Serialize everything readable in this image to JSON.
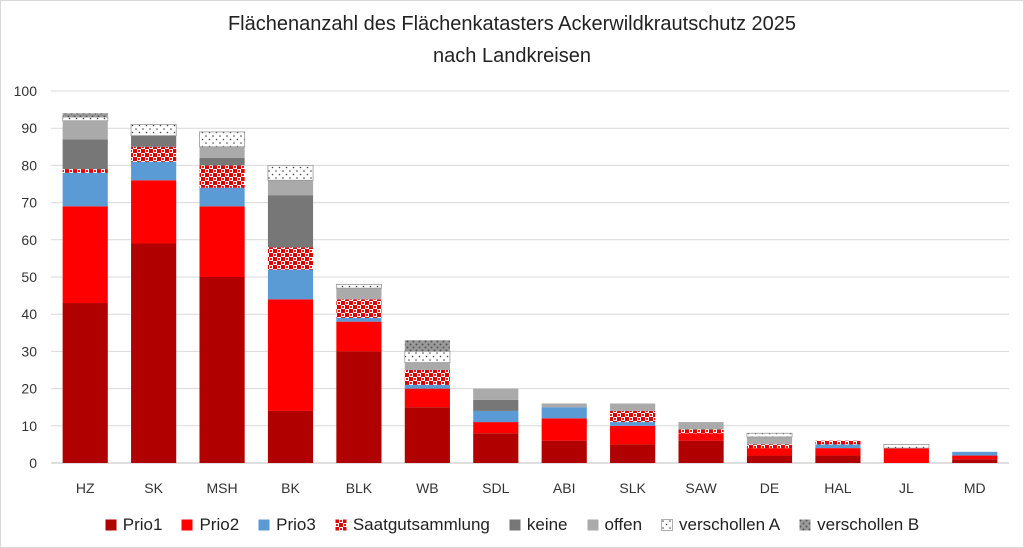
{
  "chart_data": {
    "type": "bar",
    "stacked": true,
    "title": "Flächenanzahl des Flächenkatasters Ackerwildkrautschutz 2025",
    "subtitle": "nach Landkreisen",
    "xlabel": "",
    "ylabel": "",
    "ylim": [
      0,
      100
    ],
    "yticks": [
      "0",
      "10",
      "20",
      "30",
      "40",
      "50",
      "60",
      "70",
      "80",
      "90",
      "100"
    ],
    "grid": true,
    "legend_position": "bottom",
    "categories": [
      "HZ",
      "SK",
      "MSH",
      "BK",
      "BLK",
      "WB",
      "SDL",
      "ABI",
      "SLK",
      "SAW",
      "DE",
      "HAL",
      "JL",
      "MD"
    ],
    "series": [
      {
        "name": "Prio1",
        "color": "#b00000",
        "pattern": "solid",
        "values": [
          43,
          59,
          50,
          14,
          30,
          15,
          8,
          6,
          5,
          6,
          2,
          2,
          0,
          1
        ]
      },
      {
        "name": "Prio2",
        "color": "#ff0000",
        "pattern": "solid",
        "values": [
          26,
          17,
          19,
          30,
          8,
          5,
          3,
          6,
          5,
          2,
          2,
          2,
          4,
          1
        ]
      },
      {
        "name": "Prio3",
        "color": "#5b9bd5",
        "pattern": "solid",
        "values": [
          9,
          5,
          5,
          8,
          1,
          1,
          3,
          3,
          1,
          0,
          0,
          1,
          0,
          1
        ]
      },
      {
        "name": "Saatgutsammlung",
        "color": "#ff0000",
        "pattern": "checker",
        "values": [
          1,
          4,
          6,
          6,
          5,
          4,
          0,
          0,
          3,
          1,
          1,
          1,
          0,
          0
        ]
      },
      {
        "name": "keine",
        "color": "#777777",
        "pattern": "solid",
        "values": [
          8,
          3,
          2,
          14,
          0,
          0,
          3,
          0,
          0,
          0,
          0,
          0,
          0,
          0
        ]
      },
      {
        "name": "offen",
        "color": "#aaaaaa",
        "pattern": "solid",
        "values": [
          5,
          0,
          3,
          4,
          3,
          2,
          3,
          1,
          2,
          2,
          2,
          0,
          0,
          0
        ]
      },
      {
        "name": "verschollen A",
        "color": "#ffffff",
        "pattern": "dots",
        "values": [
          1,
          3,
          4,
          4,
          1,
          3,
          0,
          0,
          0,
          0,
          1,
          0,
          1,
          0
        ]
      },
      {
        "name": "verschollen B",
        "color": "#aaaaaa",
        "pattern": "darkdots",
        "values": [
          1,
          0,
          0,
          0,
          0,
          3,
          0,
          0,
          0,
          0,
          0,
          0,
          0,
          0
        ]
      }
    ]
  }
}
